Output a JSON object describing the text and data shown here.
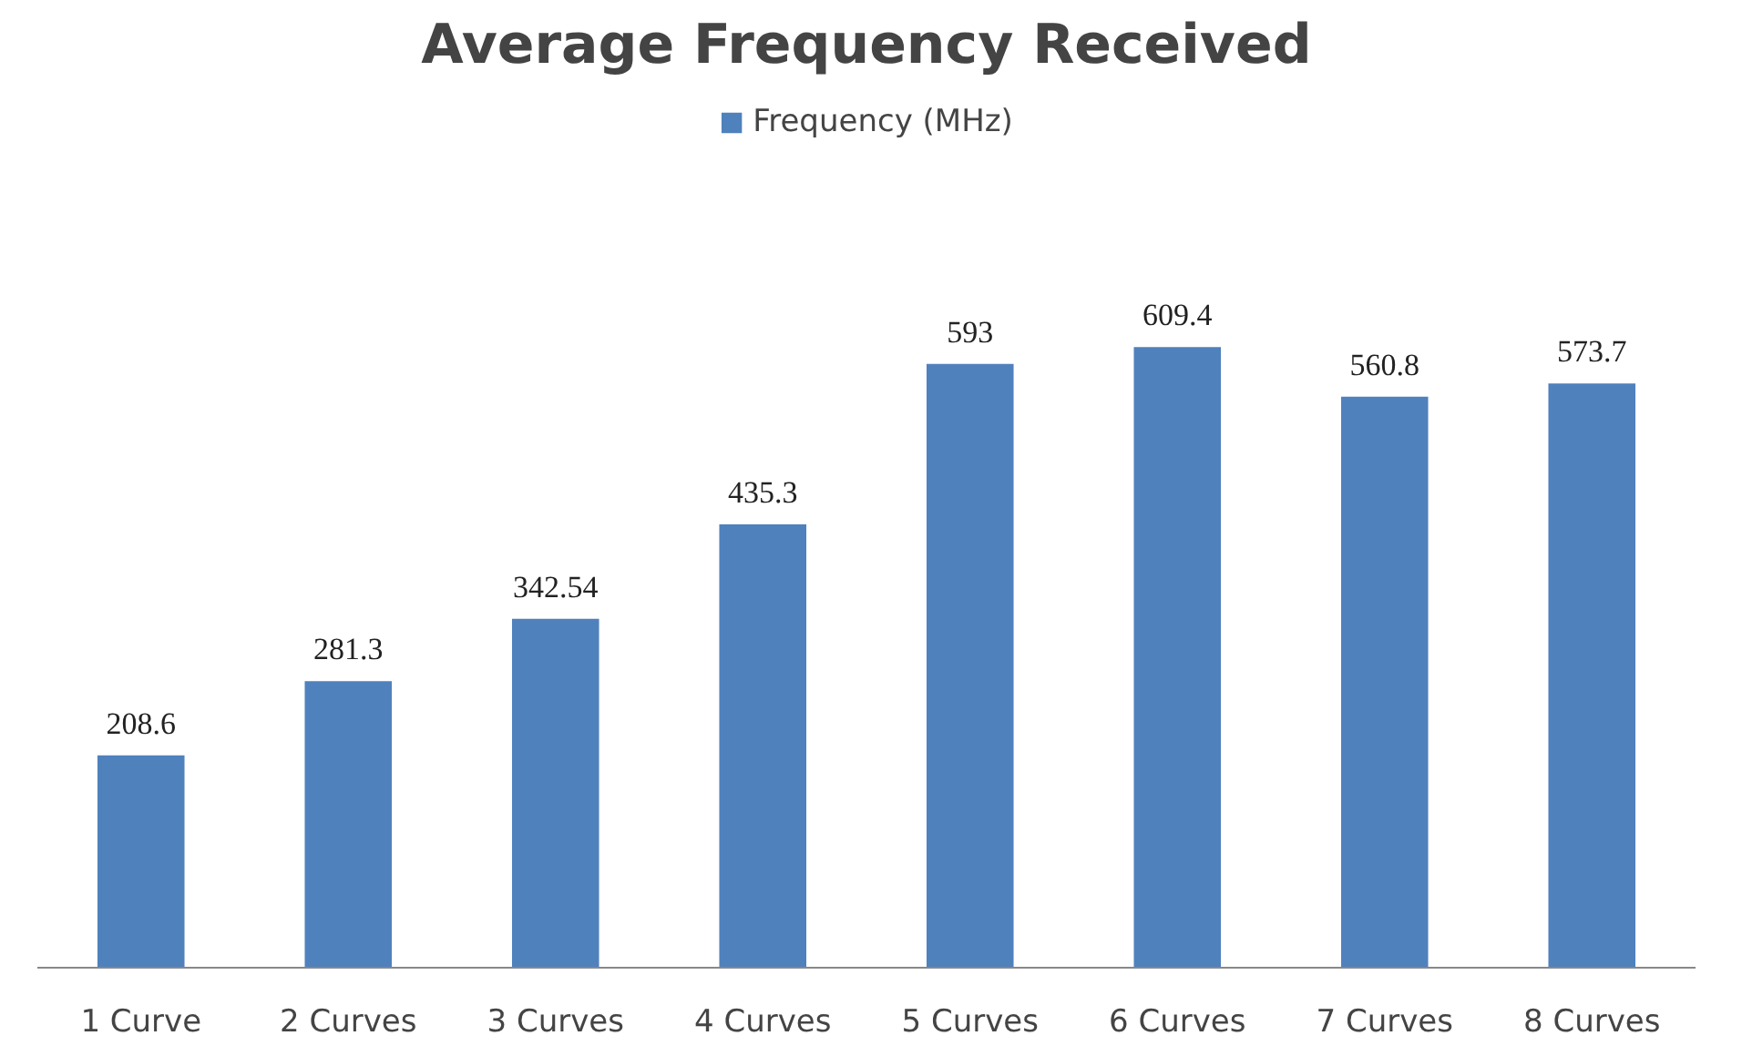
{
  "chart_data": {
    "type": "bar",
    "title": "Average Frequency Received",
    "categories": [
      "1 Curve",
      "2 Curves",
      "3 Curves",
      "4 Curves",
      "5 Curves",
      "6 Curves",
      "7 Curves",
      "8 Curves"
    ],
    "series": [
      {
        "name": "Frequency (MHz)",
        "color": "#4f81bd",
        "values": [
          208.6,
          281.3,
          342.54,
          435.3,
          593,
          609.4,
          560.8,
          573.7
        ]
      }
    ],
    "data_labels": true,
    "legend": "top",
    "grid": false
  }
}
